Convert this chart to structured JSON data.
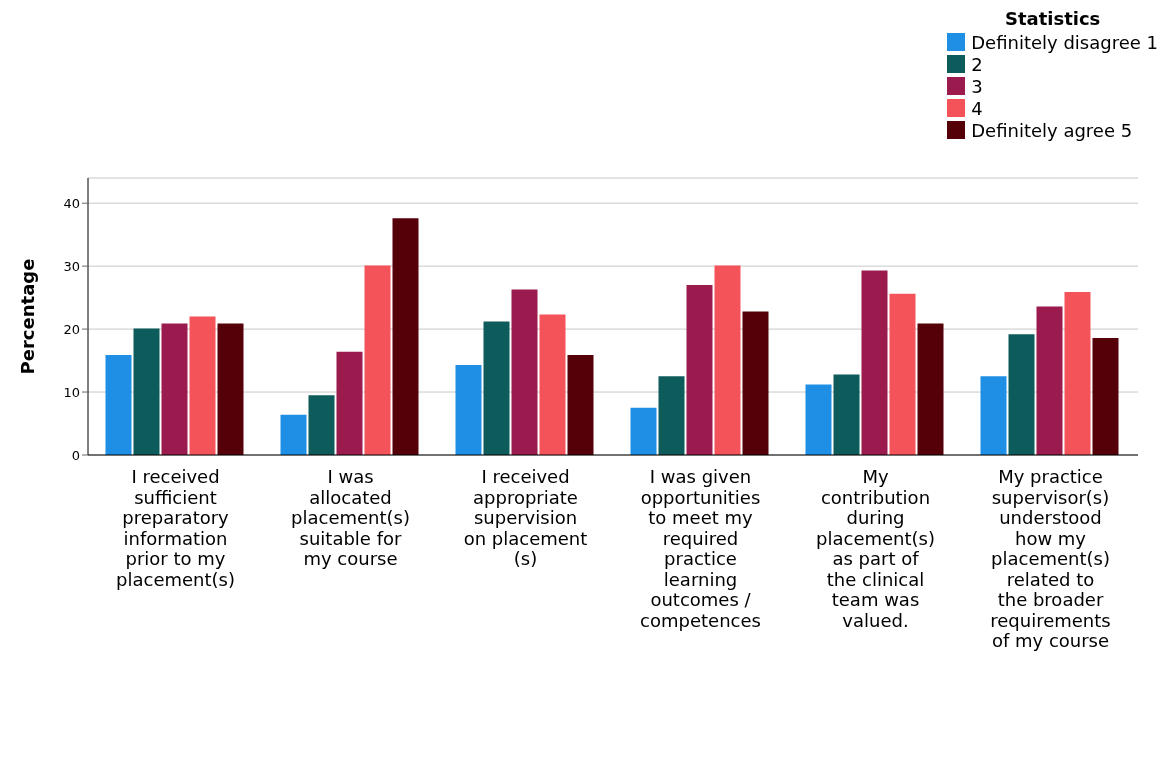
{
  "chart_data": {
    "type": "bar",
    "ylabel": "Percentage",
    "legend_title": "Statistics",
    "legend": "top right",
    "grid": "y",
    "categories": [
      "I received sufficient preparatory information prior to my placement(s)",
      "I was allocated placement(s) suitable for my course",
      "I received appropriate supervision on placement (s)",
      "I was given opportunities to meet my required practice learning outcomes / competences",
      "My contribution during placement(s) as part of the clinical team was valued.",
      "My practice supervisor(s) understood how my placement(s) related to the broader requirements of my course"
    ],
    "series": [
      {
        "name": "Definitely disagree 1",
        "color": "#1f8fe6",
        "values": [
          15.9,
          6.4,
          14.3,
          7.5,
          11.2,
          12.5
        ]
      },
      {
        "name": "2",
        "color": "#0d5b5a",
        "values": [
          20.1,
          9.5,
          21.2,
          12.5,
          12.8,
          19.2
        ]
      },
      {
        "name": "3",
        "color": "#9b1b4f",
        "values": [
          20.9,
          16.4,
          26.3,
          27.0,
          29.3,
          23.6
        ]
      },
      {
        "name": "4",
        "color": "#f5535a",
        "values": [
          22.0,
          30.1,
          22.3,
          30.1,
          25.6,
          25.9
        ]
      },
      {
        "name": "Definitely agree 5",
        "color": "#550008",
        "values": [
          20.9,
          37.6,
          15.9,
          22.8,
          20.9,
          18.6
        ]
      }
    ],
    "ylim": [
      0,
      44
    ],
    "yticks": [
      0,
      10,
      20,
      30,
      40
    ]
  }
}
